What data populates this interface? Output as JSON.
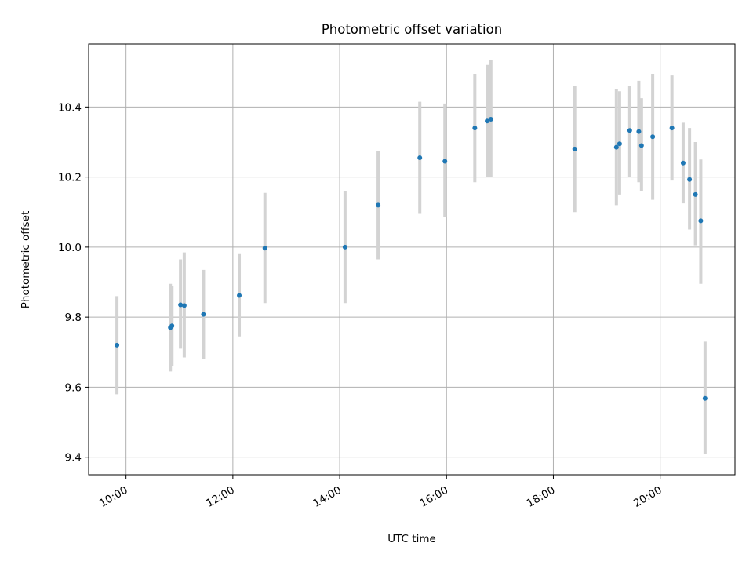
{
  "chart_data": {
    "type": "scatter",
    "title": "Photometric offset variation",
    "xlabel": "UTC time",
    "ylabel": "Photometric offset",
    "x_unit": "hours (UTC)",
    "xlim": [
      9.3,
      21.4
    ],
    "ylim": [
      9.35,
      10.58
    ],
    "grid": true,
    "x_ticks": [
      {
        "value": 10,
        "label": "10:00"
      },
      {
        "value": 12,
        "label": "12:00"
      },
      {
        "value": 14,
        "label": "14:00"
      },
      {
        "value": 16,
        "label": "16:00"
      },
      {
        "value": 18,
        "label": "18:00"
      },
      {
        "value": 20,
        "label": "20:00"
      }
    ],
    "y_ticks": [
      {
        "value": 9.4,
        "label": "9.4"
      },
      {
        "value": 9.6,
        "label": "9.6"
      },
      {
        "value": 9.8,
        "label": "9.8"
      },
      {
        "value": 10.0,
        "label": "10.0"
      },
      {
        "value": 10.2,
        "label": "10.2"
      },
      {
        "value": 10.4,
        "label": "10.4"
      }
    ],
    "colors": {
      "point": "#1f77b4",
      "errorbar": "#d3d3d3",
      "grid": "#b0b0b0",
      "axis": "#000000"
    },
    "series": [
      {
        "name": "offset",
        "points": [
          {
            "x": 9.83,
            "y": 9.72,
            "lo": 9.58,
            "hi": 9.86
          },
          {
            "x": 10.83,
            "y": 9.77,
            "lo": 9.645,
            "hi": 9.895
          },
          {
            "x": 10.86,
            "y": 9.775,
            "lo": 9.66,
            "hi": 9.89
          },
          {
            "x": 11.02,
            "y": 9.835,
            "lo": 9.71,
            "hi": 9.965
          },
          {
            "x": 11.09,
            "y": 9.833,
            "lo": 9.685,
            "hi": 9.985
          },
          {
            "x": 11.45,
            "y": 9.808,
            "lo": 9.68,
            "hi": 9.935
          },
          {
            "x": 12.12,
            "y": 9.862,
            "lo": 9.745,
            "hi": 9.98
          },
          {
            "x": 12.6,
            "y": 9.997,
            "lo": 9.84,
            "hi": 10.155
          },
          {
            "x": 14.1,
            "y": 10.0,
            "lo": 9.84,
            "hi": 10.16
          },
          {
            "x": 14.72,
            "y": 10.12,
            "lo": 9.965,
            "hi": 10.275
          },
          {
            "x": 15.5,
            "y": 10.255,
            "lo": 10.095,
            "hi": 10.415
          },
          {
            "x": 15.97,
            "y": 10.245,
            "lo": 10.085,
            "hi": 10.41
          },
          {
            "x": 16.53,
            "y": 10.34,
            "lo": 10.185,
            "hi": 10.495
          },
          {
            "x": 16.76,
            "y": 10.36,
            "lo": 10.2,
            "hi": 10.52
          },
          {
            "x": 16.83,
            "y": 10.365,
            "lo": 10.2,
            "hi": 10.535
          },
          {
            "x": 18.4,
            "y": 10.28,
            "lo": 10.1,
            "hi": 10.46
          },
          {
            "x": 19.18,
            "y": 10.285,
            "lo": 10.12,
            "hi": 10.45
          },
          {
            "x": 19.24,
            "y": 10.295,
            "lo": 10.15,
            "hi": 10.445
          },
          {
            "x": 19.43,
            "y": 10.333,
            "lo": 10.2,
            "hi": 10.46
          },
          {
            "x": 19.6,
            "y": 10.33,
            "lo": 10.185,
            "hi": 10.475
          },
          {
            "x": 19.65,
            "y": 10.29,
            "lo": 10.16,
            "hi": 10.425
          },
          {
            "x": 19.86,
            "y": 10.315,
            "lo": 10.135,
            "hi": 10.495
          },
          {
            "x": 20.22,
            "y": 10.34,
            "lo": 10.19,
            "hi": 10.49
          },
          {
            "x": 20.43,
            "y": 10.24,
            "lo": 10.125,
            "hi": 10.355
          },
          {
            "x": 20.55,
            "y": 10.193,
            "lo": 10.05,
            "hi": 10.34
          },
          {
            "x": 20.66,
            "y": 10.15,
            "lo": 10.005,
            "hi": 10.3
          },
          {
            "x": 20.76,
            "y": 10.075,
            "lo": 9.895,
            "hi": 10.25
          },
          {
            "x": 20.84,
            "y": 9.568,
            "lo": 9.41,
            "hi": 9.73
          }
        ]
      }
    ]
  }
}
